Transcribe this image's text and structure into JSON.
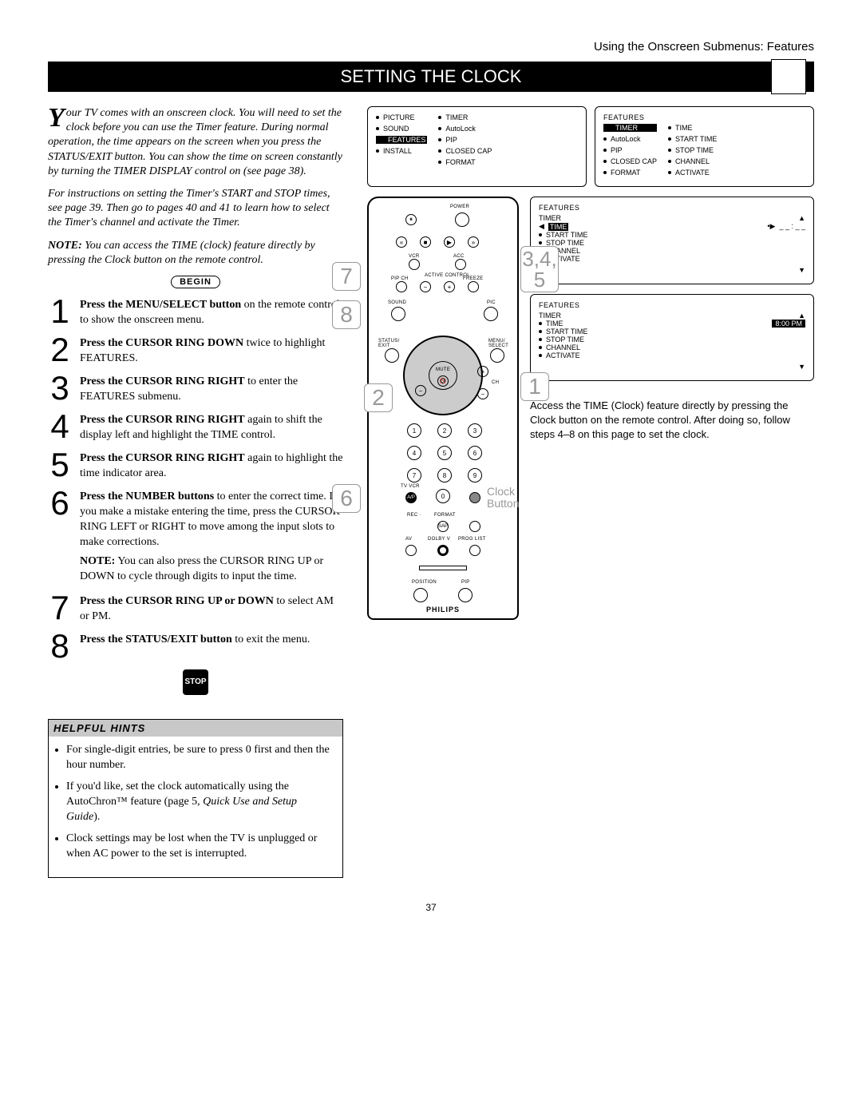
{
  "header": {
    "context": "Using the Onscreen Submenus: Features"
  },
  "title": "SETTING THE   CLOCK",
  "intro": {
    "dropcap": "Y",
    "p1_rest": "our TV comes with an onscreen clock. You will need to set the clock before you can use the Timer feature. During normal operation, the time appears on the screen when you press the STATUS/EXIT button. You can show the time on screen constantly by turning the TIMER DISPLAY control on (see page 38).",
    "p2": "For instructions on setting the Timer's START and STOP times, see page 39. Then go to pages 40 and 41 to learn how to select the Timer's channel and activate the Timer.",
    "note_label": "NOTE:",
    "note": " You can access the TIME (clock) feature directly by pressing the Clock button on the remote control."
  },
  "begin": "BEGIN",
  "stop": "STOP",
  "steps": [
    {
      "n": "1",
      "bold": "Press the MENU/SELECT button",
      "rest": " on the remote control to show the onscreen menu."
    },
    {
      "n": "2",
      "bold": "Press the CURSOR RING DOWN",
      "rest": " twice to highlight FEATURES."
    },
    {
      "n": "3",
      "bold": "Press the CURSOR RING RIGHT",
      "rest": " to enter the FEATURES submenu."
    },
    {
      "n": "4",
      "bold": "Press the CURSOR RING RIGHT",
      "rest": " again to shift the display left and highlight the TIME control."
    },
    {
      "n": "5",
      "bold": "Press the CURSOR RING RIGHT",
      "rest": " again to highlight the time indicator area."
    },
    {
      "n": "6",
      "bold": "Press the NUMBER buttons",
      "rest": " to enter the correct time. If you make a mistake entering the time, press the CURSOR RING LEFT or RIGHT to move among the input slots to make corrections."
    }
  ],
  "note6": {
    "bold": "NOTE:",
    "rest": " You can also press the CURSOR RING UP or DOWN to cycle through digits to input the time."
  },
  "steps_b": [
    {
      "n": "7",
      "bold": "Press the CURSOR RING UP or DOWN",
      "rest": " to select AM or PM."
    },
    {
      "n": "8",
      "bold": "Press the STATUS/EXIT button",
      "rest": " to exit the menu."
    }
  ],
  "hints": {
    "title": "HELPFUL HINTS",
    "items": [
      "For single-digit entries, be sure to press 0 first and then the hour number.",
      "If you'd like, set the clock automatically using the AutoChron™ feature (page 5, Quick Use and Setup Guide).",
      "Clock settings may be lost when the TV is unplugged or when AC power to the set is interrupted."
    ],
    "italic_phrase": "Quick Use and Setup Guide"
  },
  "menus": {
    "main_left": [
      "PICTURE",
      "SOUND",
      "FEATURES",
      "INSTALL"
    ],
    "main_right": [
      "TIMER",
      "AutoLock",
      "PIP",
      "CLOSED CAP",
      "FORMAT"
    ],
    "features_header": "FEATURES",
    "f_left": [
      "TIMER",
      "AutoLock",
      "PIP",
      "CLOSED CAP",
      "FORMAT"
    ],
    "f_right": [
      "TIME",
      "START TIME",
      "STOP TIME",
      "CHANNEL",
      "ACTIVATE"
    ],
    "timer_header": "TIMER",
    "t_items": [
      "TIME",
      "START TIME",
      "STOP TIME",
      "CHANNEL",
      "ACTIVATE"
    ],
    "time_placeholder": "_ _ : _ _",
    "time_value": "8:00  PM"
  },
  "access_note": "Access the TIME (Clock) feature directly by pressing the Clock button on the remote control. After doing so, follow steps 4–8 on this page to set the clock.",
  "clock_label": "Clock\nButton",
  "callouts": {
    "c1": "1",
    "c2": "2",
    "c345": "3,4,\n5",
    "c6": "6",
    "c7": "7",
    "c8": "8"
  },
  "remote": {
    "brand": "PHILIPS",
    "numbers": [
      "1",
      "2",
      "3",
      "4",
      "5",
      "6",
      "7",
      "8",
      "9",
      "0"
    ],
    "labels": {
      "power": "POWER",
      "vcr": "VCR",
      "acc": "ACC",
      "pipch": "PIP CH",
      "active": "ACTIVE CONTROL",
      "freeze": "FREEZE",
      "sound": "SOUND",
      "pic": "PIC",
      "status": "STATUS/\nEXIT",
      "menu": "MENU/\nSELECT",
      "mute": "MUTE",
      "ch": "CH",
      "tvvcr": "TV VCR",
      "ap": "A/P",
      "rec": "REC ·",
      "format": "FORMAT",
      "sap": "SAP",
      "av": "AV",
      "dolby": "DOLBY V",
      "prog": "PROG LIST",
      "position": "POSITION",
      "pip": "PIP"
    }
  },
  "page_number": "37"
}
